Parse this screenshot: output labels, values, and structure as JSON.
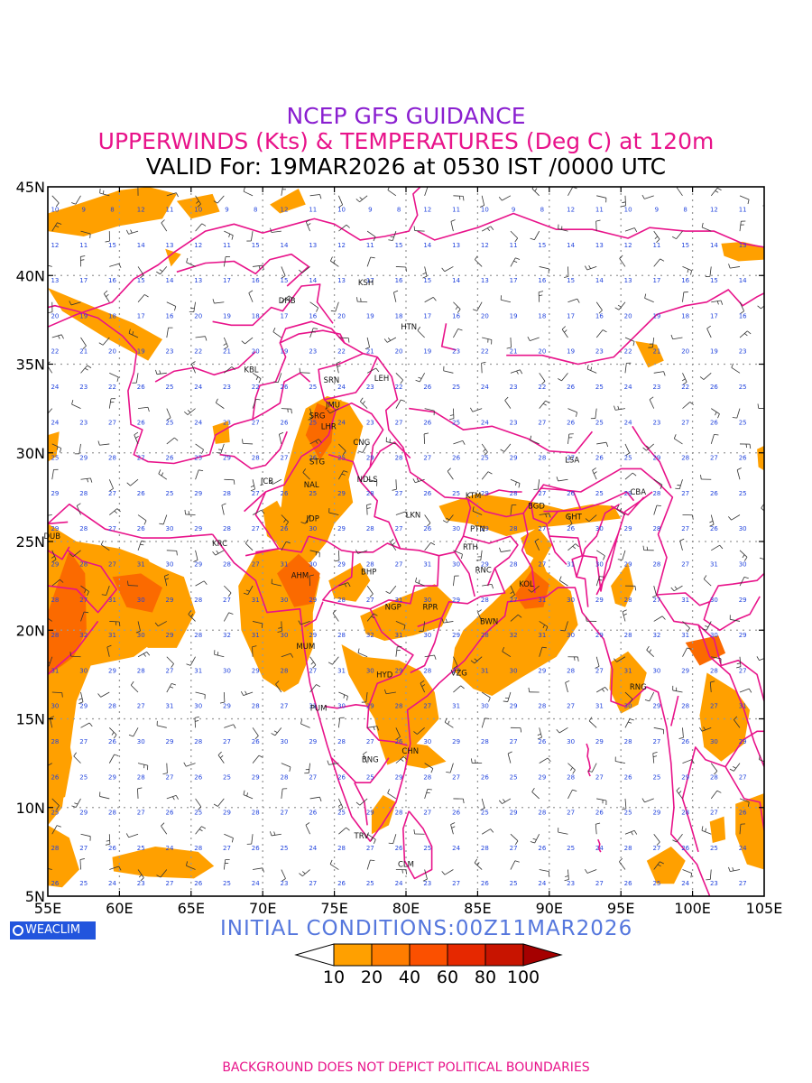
{
  "titles": {
    "line1": "NCEP GFS GUIDANCE",
    "line2": "UPPERWINDS (Kts) & TEMPERATURES (Deg C) at 120m",
    "line3": "VALID For: 19MAR2026 at 0530 IST /0000 UTC"
  },
  "axes": {
    "lat_labels": [
      "45N",
      "40N",
      "35N",
      "30N",
      "25N",
      "20N",
      "15N",
      "10N",
      "5N"
    ],
    "lon_labels": [
      "55E",
      "60E",
      "65E",
      "70E",
      "75E",
      "80E",
      "85E",
      "90E",
      "95E",
      "100E",
      "105E"
    ],
    "lat_range": [
      5,
      45
    ],
    "lon_range": [
      55,
      105
    ],
    "grid": true
  },
  "stations": [
    {
      "code": "KSH",
      "lon": 77.2,
      "lat": 39.6
    },
    {
      "code": "DHB",
      "lon": 71.7,
      "lat": 38.6
    },
    {
      "code": "HTN",
      "lon": 80.2,
      "lat": 37.1
    },
    {
      "code": "KBL",
      "lon": 69.2,
      "lat": 34.7
    },
    {
      "code": "LEH",
      "lon": 78.3,
      "lat": 34.2
    },
    {
      "code": "SRN",
      "lon": 74.8,
      "lat": 34.1
    },
    {
      "code": "JMU",
      "lon": 74.9,
      "lat": 32.7
    },
    {
      "code": "SRG",
      "lon": 73.8,
      "lat": 32.1
    },
    {
      "code": "LHR",
      "lon": 74.6,
      "lat": 31.5
    },
    {
      "code": "CNG",
      "lon": 76.9,
      "lat": 30.6
    },
    {
      "code": "STG",
      "lon": 73.8,
      "lat": 29.5
    },
    {
      "code": "LSA",
      "lon": 91.6,
      "lat": 29.6
    },
    {
      "code": "JCB",
      "lon": 70.3,
      "lat": 28.4
    },
    {
      "code": "NAL",
      "lon": 73.4,
      "lat": 28.2
    },
    {
      "code": "NDLS",
      "lon": 77.3,
      "lat": 28.5
    },
    {
      "code": "KTM",
      "lon": 84.7,
      "lat": 27.6
    },
    {
      "code": "CBA",
      "lon": 96.2,
      "lat": 27.8
    },
    {
      "code": "JDP",
      "lon": 73.5,
      "lat": 26.3
    },
    {
      "code": "LKN",
      "lon": 80.5,
      "lat": 26.5
    },
    {
      "code": "BGD",
      "lon": 89.1,
      "lat": 27.0
    },
    {
      "code": "GHT",
      "lon": 91.7,
      "lat": 26.4
    },
    {
      "code": "PTN",
      "lon": 85.0,
      "lat": 25.7
    },
    {
      "code": "DUB",
      "lon": 55.3,
      "lat": 25.3
    },
    {
      "code": "KRC",
      "lon": 67.0,
      "lat": 24.9
    },
    {
      "code": "RTH",
      "lon": 84.5,
      "lat": 24.7
    },
    {
      "code": "BHP",
      "lon": 77.4,
      "lat": 23.3
    },
    {
      "code": "RNC",
      "lon": 85.4,
      "lat": 23.4
    },
    {
      "code": "AHM",
      "lon": 72.6,
      "lat": 23.1
    },
    {
      "code": "KOL",
      "lon": 88.4,
      "lat": 22.6
    },
    {
      "code": "NGP",
      "lon": 79.1,
      "lat": 21.3
    },
    {
      "code": "RPR",
      "lon": 81.7,
      "lat": 21.3
    },
    {
      "code": "BWN",
      "lon": 85.8,
      "lat": 20.5
    },
    {
      "code": "MUM",
      "lon": 73.0,
      "lat": 19.1
    },
    {
      "code": "HYD",
      "lon": 78.5,
      "lat": 17.5
    },
    {
      "code": "VZG",
      "lon": 83.7,
      "lat": 17.6
    },
    {
      "code": "RNG",
      "lon": 96.2,
      "lat": 16.8
    },
    {
      "code": "PUM",
      "lon": 73.9,
      "lat": 15.6
    },
    {
      "code": "CHN",
      "lon": 80.3,
      "lat": 13.2
    },
    {
      "code": "BNG",
      "lon": 77.5,
      "lat": 12.7
    },
    {
      "code": "TRV",
      "lon": 76.9,
      "lat": 8.4
    },
    {
      "code": "CLM",
      "lon": 80.0,
      "lat": 6.8
    }
  ],
  "colorbar": {
    "labels": [
      "10",
      "20",
      "40",
      "60",
      "80",
      "100"
    ],
    "colors": [
      "#ffa000",
      "#ff7d00",
      "#fb5000",
      "#e62800",
      "#c81400",
      "#a50000"
    ]
  },
  "logo_text": "WEACLIM",
  "initial_conditions": "INITIAL CONDITIONS:00Z11MAR2026",
  "disclaimer": "BACKGROUND DOES NOT DEPICT POLITICAL BOUNDARIES",
  "colors": {
    "boundary": "#e8138a",
    "shade_light": "#ffa000",
    "shade_dark": "#fb6a00",
    "temperature_text": "#2244dd"
  }
}
